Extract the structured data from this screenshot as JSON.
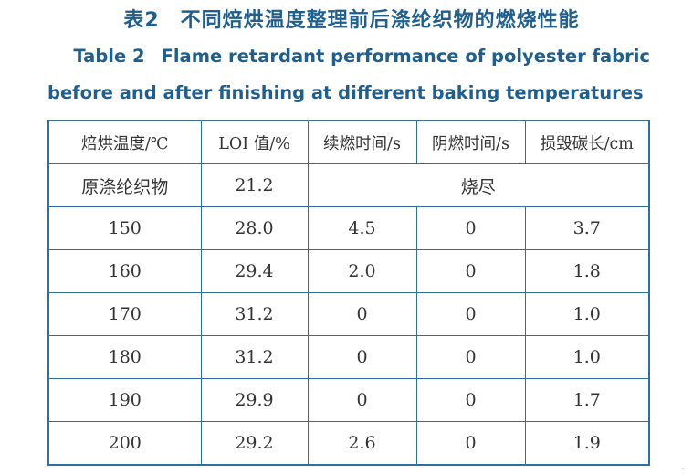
{
  "title_cn": "表2　不同焙烘温度整理前后涤纶织物的燃烧性能",
  "title_en_table_number": "Table 2",
  "title_en_line1": "Flame retardant performance of polyester fabric",
  "title_en_line2": "before and after finishing at different baking temperatures",
  "table": {
    "headers": [
      "焙烘温度/℃",
      "LOI 值/%",
      "续燃时间/s",
      "阴燃时间/s",
      "损毁碳长/cm"
    ],
    "original": {
      "label": "原涤纶织物",
      "loi": "21.2",
      "result": "烧尽"
    },
    "rows": [
      [
        "150",
        "28.0",
        "4.5",
        "0",
        "3.7"
      ],
      [
        "160",
        "29.4",
        "2.0",
        "0",
        "1.8"
      ],
      [
        "170",
        "31.2",
        "0",
        "0",
        "1.0"
      ],
      [
        "180",
        "31.2",
        "0",
        "0",
        "1.0"
      ],
      [
        "190",
        "29.9",
        "0",
        "0",
        "1.7"
      ],
      [
        "200",
        "29.2",
        "2.6",
        "0",
        "1.9"
      ]
    ]
  },
  "colors": {
    "title": "#1f5f8f",
    "rule": "#2f6fa0",
    "text": "#333333"
  }
}
